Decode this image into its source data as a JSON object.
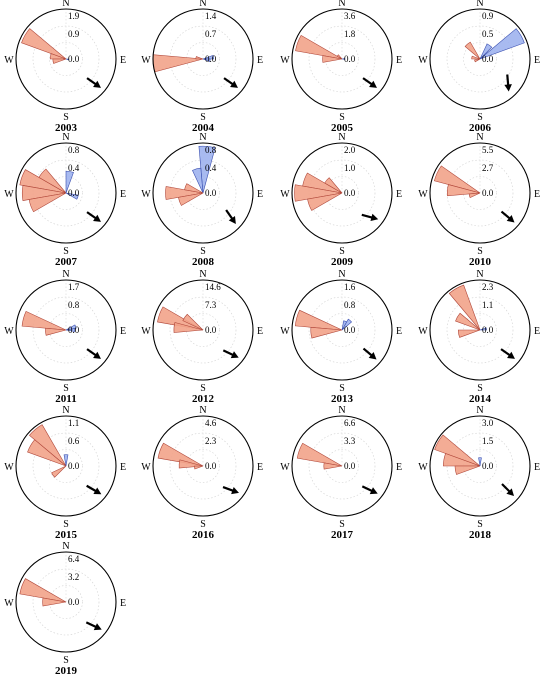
{
  "figure": {
    "direction_labels": {
      "north": "N",
      "south": "S",
      "east": "E",
      "west": "W"
    },
    "colors": {
      "warm_fill": "#f2a38a",
      "warm_stroke": "#b0473a",
      "cool_fill": "#9fb3ee",
      "cool_stroke": "#3a4fb0",
      "circle": "#000000",
      "arrow": "#000000"
    }
  },
  "chart_data": [
    {
      "type": "polar-bar",
      "year": "2003",
      "ticks": [
        "1.9",
        "0.9",
        "0.0"
      ],
      "rmax": 1.9,
      "bars": [
        {
          "dir": 300,
          "value": 1.8,
          "tone": "warm"
        },
        {
          "dir": 280,
          "value": 0.6,
          "tone": "warm"
        },
        {
          "dir": 260,
          "value": 0.5,
          "tone": "warm"
        },
        {
          "dir": 100,
          "value": 0.1,
          "tone": "cool"
        }
      ],
      "arrow_dir": 125
    },
    {
      "type": "polar-bar",
      "year": "2004",
      "ticks": [
        "1.4",
        "0.7",
        "0.0"
      ],
      "rmax": 1.4,
      "bars": [
        {
          "dir": 265,
          "value": 1.4,
          "tone": "warm"
        },
        {
          "dir": 280,
          "value": 0.2,
          "tone": "warm"
        },
        {
          "dir": 80,
          "value": 0.3,
          "tone": "cool"
        },
        {
          "dir": 100,
          "value": 0.2,
          "tone": "cool"
        }
      ],
      "arrow_dir": 125
    },
    {
      "type": "polar-bar",
      "year": "2005",
      "ticks": [
        "3.6",
        "1.8",
        "0.0"
      ],
      "rmax": 3.6,
      "bars": [
        {
          "dir": 290,
          "value": 3.4,
          "tone": "warm"
        },
        {
          "dir": 270,
          "value": 1.4,
          "tone": "warm"
        },
        {
          "dir": 310,
          "value": 0.4,
          "tone": "warm"
        },
        {
          "dir": 90,
          "value": 0.2,
          "tone": "cool"
        }
      ],
      "arrow_dir": 125
    },
    {
      "type": "polar-bar",
      "year": "2006",
      "ticks": [
        "0.9",
        "0.5",
        "0.0"
      ],
      "rmax": 0.9,
      "bars": [
        {
          "dir": 60,
          "value": 0.85,
          "tone": "cool"
        },
        {
          "dir": 35,
          "value": 0.3,
          "tone": "cool"
        },
        {
          "dir": 320,
          "value": 0.35,
          "tone": "warm"
        },
        {
          "dir": 280,
          "value": 0.15,
          "tone": "warm"
        },
        {
          "dir": 250,
          "value": 0.1,
          "tone": "warm"
        }
      ],
      "arrow_dir": 175
    },
    {
      "type": "polar-bar",
      "year": "2007",
      "ticks": [
        "0.8",
        "0.4",
        "0.0"
      ],
      "rmax": 0.8,
      "bars": [
        {
          "dir": 290,
          "value": 0.75,
          "tone": "warm"
        },
        {
          "dir": 270,
          "value": 0.7,
          "tone": "warm"
        },
        {
          "dir": 310,
          "value": 0.5,
          "tone": "warm"
        },
        {
          "dir": 250,
          "value": 0.6,
          "tone": "warm"
        },
        {
          "dir": 10,
          "value": 0.35,
          "tone": "cool"
        },
        {
          "dir": 110,
          "value": 0.2,
          "tone": "cool"
        }
      ],
      "arrow_dir": 125
    },
    {
      "type": "polar-bar",
      "year": "2008",
      "ticks": [
        "0.8",
        "0.4",
        "0.0"
      ],
      "rmax": 0.8,
      "bars": [
        {
          "dir": 5,
          "value": 0.75,
          "tone": "cool"
        },
        {
          "dir": 345,
          "value": 0.4,
          "tone": "cool"
        },
        {
          "dir": 270,
          "value": 0.6,
          "tone": "warm"
        },
        {
          "dir": 250,
          "value": 0.4,
          "tone": "warm"
        },
        {
          "dir": 290,
          "value": 0.3,
          "tone": "warm"
        }
      ],
      "arrow_dir": 145
    },
    {
      "type": "polar-bar",
      "year": "2009",
      "ticks": [
        "2.0",
        "1.0",
        "0.0"
      ],
      "rmax": 2.0,
      "bars": [
        {
          "dir": 290,
          "value": 1.6,
          "tone": "warm"
        },
        {
          "dir": 270,
          "value": 1.9,
          "tone": "warm"
        },
        {
          "dir": 250,
          "value": 1.4,
          "tone": "warm"
        },
        {
          "dir": 310,
          "value": 0.8,
          "tone": "warm"
        }
      ],
      "arrow_dir": 105
    },
    {
      "type": "polar-bar",
      "year": "2010",
      "ticks": [
        "5.5",
        "2.7",
        "0.0"
      ],
      "rmax": 5.5,
      "bars": [
        {
          "dir": 295,
          "value": 5.2,
          "tone": "warm"
        },
        {
          "dir": 275,
          "value": 3.6,
          "tone": "warm"
        },
        {
          "dir": 255,
          "value": 1.2,
          "tone": "warm"
        }
      ],
      "arrow_dir": 130
    },
    {
      "type": "polar-bar",
      "year": "2011",
      "ticks": [
        "1.7",
        "0.8",
        "0.0"
      ],
      "rmax": 1.7,
      "bars": [
        {
          "dir": 285,
          "value": 1.5,
          "tone": "warm"
        },
        {
          "dir": 265,
          "value": 0.7,
          "tone": "warm"
        },
        {
          "dir": 70,
          "value": 0.35,
          "tone": "cool"
        },
        {
          "dir": 90,
          "value": 0.3,
          "tone": "cool"
        }
      ],
      "arrow_dir": 125
    },
    {
      "type": "polar-bar",
      "year": "2012",
      "ticks": [
        "14.6",
        "7.3",
        "0.0"
      ],
      "rmax": 14.6,
      "bars": [
        {
          "dir": 290,
          "value": 13.5,
          "tone": "warm"
        },
        {
          "dir": 275,
          "value": 8.5,
          "tone": "warm"
        },
        {
          "dir": 305,
          "value": 6.5,
          "tone": "warm"
        }
      ],
      "arrow_dir": 115
    },
    {
      "type": "polar-bar",
      "year": "2013",
      "ticks": [
        "1.6",
        "0.8",
        "0.0"
      ],
      "rmax": 1.6,
      "bars": [
        {
          "dir": 285,
          "value": 1.5,
          "tone": "warm"
        },
        {
          "dir": 265,
          "value": 1.0,
          "tone": "warm"
        },
        {
          "dir": 40,
          "value": 0.4,
          "tone": "cool"
        },
        {
          "dir": 20,
          "value": 0.3,
          "tone": "cool"
        }
      ],
      "arrow_dir": 130
    },
    {
      "type": "polar-bar",
      "year": "2014",
      "ticks": [
        "2.3",
        "1.1",
        "0.0"
      ],
      "rmax": 2.3,
      "bars": [
        {
          "dir": 330,
          "value": 2.2,
          "tone": "warm"
        },
        {
          "dir": 300,
          "value": 1.2,
          "tone": "warm"
        },
        {
          "dir": 260,
          "value": 1.0,
          "tone": "warm"
        },
        {
          "dir": 80,
          "value": 0.3,
          "tone": "cool"
        }
      ],
      "arrow_dir": 125
    },
    {
      "type": "polar-bar",
      "year": "2015",
      "ticks": [
        "1.1",
        "0.6",
        "0.0"
      ],
      "rmax": 1.1,
      "bars": [
        {
          "dir": 320,
          "value": 1.05,
          "tone": "warm"
        },
        {
          "dir": 300,
          "value": 0.9,
          "tone": "warm"
        },
        {
          "dir": 235,
          "value": 0.35,
          "tone": "warm"
        },
        {
          "dir": 0,
          "value": 0.25,
          "tone": "cool"
        }
      ],
      "arrow_dir": 120
    },
    {
      "type": "polar-bar",
      "year": "2016",
      "ticks": [
        "4.6",
        "2.3",
        "0.0"
      ],
      "rmax": 4.6,
      "bars": [
        {
          "dir": 290,
          "value": 4.2,
          "tone": "warm"
        },
        {
          "dir": 275,
          "value": 2.2,
          "tone": "warm"
        },
        {
          "dir": 260,
          "value": 0.8,
          "tone": "warm"
        }
      ],
      "arrow_dir": 110
    },
    {
      "type": "polar-bar",
      "year": "2017",
      "ticks": [
        "6.6",
        "3.3",
        "0.0"
      ],
      "rmax": 6.6,
      "bars": [
        {
          "dir": 290,
          "value": 6.0,
          "tone": "warm"
        },
        {
          "dir": 270,
          "value": 2.4,
          "tone": "warm"
        }
      ],
      "arrow_dir": 115
    },
    {
      "type": "polar-bar",
      "year": "2018",
      "ticks": [
        "3.0",
        "1.5",
        "0.0"
      ],
      "rmax": 3.0,
      "bars": [
        {
          "dir": 300,
          "value": 2.9,
          "tone": "warm"
        },
        {
          "dir": 280,
          "value": 2.2,
          "tone": "warm"
        },
        {
          "dir": 260,
          "value": 1.5,
          "tone": "warm"
        },
        {
          "dir": 0,
          "value": 0.5,
          "tone": "cool"
        }
      ],
      "arrow_dir": 135
    },
    {
      "type": "polar-bar",
      "year": "2019",
      "ticks": [
        "6.4",
        "3.2",
        "0.0"
      ],
      "rmax": 6.4,
      "bars": [
        {
          "dir": 290,
          "value": 6.0,
          "tone": "warm"
        },
        {
          "dir": 270,
          "value": 3.0,
          "tone": "warm"
        }
      ],
      "arrow_dir": 115
    }
  ]
}
